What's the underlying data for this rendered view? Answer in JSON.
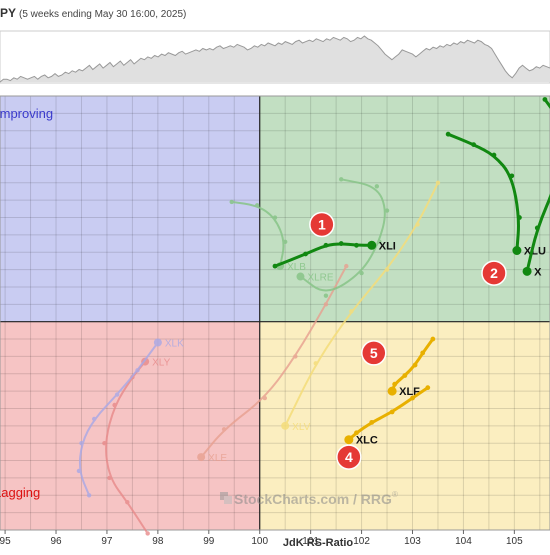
{
  "header": {
    "symbol": "PY",
    "period": "(5 weeks ending May 30 16:00, 2025)"
  },
  "quadrants": {
    "improving": "Improving",
    "lagging": "Lagging",
    "colors": {
      "improving": "#c9ccf2",
      "leading": "#c2dfc2",
      "lagging": "#f6c4c4",
      "weakening": "#fbeec0"
    }
  },
  "watermark": {
    "brand": "StockCharts.com",
    "suffix": "/ RRG",
    "reg": "®"
  },
  "badges": [
    {
      "number": "1",
      "x": 101.22,
      "y": 102.8
    },
    {
      "number": "2",
      "x": 104.6,
      "y": 101.4
    },
    {
      "number": "4",
      "x": 101.75,
      "y": 96.1
    },
    {
      "number": "5",
      "x": 102.24,
      "y": 99.1
    }
  ],
  "chart_data": {
    "type": "scatter",
    "xlabel": "JdK RS-Ratio",
    "xlim": [
      94.9,
      105.7
    ],
    "ylim": [
      94.0,
      106.5
    ],
    "center": {
      "x": 100,
      "y": 100
    },
    "x_ticks": [
      95,
      96,
      97,
      98,
      99,
      100,
      101,
      102,
      103,
      104,
      105
    ],
    "spark_values": [
      2,
      4,
      4,
      3,
      5,
      4,
      6,
      5,
      4,
      5,
      6,
      4,
      6,
      7,
      5,
      6,
      8,
      6,
      7,
      9,
      8,
      10,
      9,
      11,
      10,
      12,
      14,
      11,
      13,
      15,
      12,
      14,
      16,
      13,
      15,
      17,
      14,
      16,
      18,
      15,
      17,
      19,
      18,
      20,
      19,
      21,
      20,
      22,
      21,
      23,
      22,
      21,
      23,
      24,
      22,
      23,
      24,
      25,
      24,
      26,
      25,
      26,
      25,
      27,
      28,
      26,
      27,
      28,
      27,
      29,
      28,
      27,
      25,
      26,
      28,
      27,
      29,
      28,
      30,
      29,
      28,
      30,
      29,
      31,
      30,
      29,
      31,
      32,
      30,
      31,
      32,
      31,
      33,
      32,
      31,
      33,
      32,
      34,
      33,
      32,
      34,
      33,
      31,
      32,
      34,
      33,
      35,
      33,
      32,
      30,
      28,
      25,
      22,
      20,
      18,
      20,
      22,
      25,
      24,
      23,
      22,
      20,
      22,
      24,
      26,
      25,
      27,
      26,
      28,
      27,
      29,
      28,
      30,
      29,
      31,
      30,
      32,
      31,
      30,
      32,
      31,
      29,
      28,
      26,
      22,
      18,
      14,
      10,
      7,
      5,
      8,
      12,
      14,
      12,
      10,
      11,
      13,
      12,
      14,
      13,
      12
    ],
    "series": [
      {
        "name": "XLI",
        "label": "XLI",
        "color": "#118811",
        "opacity": 1,
        "points": [
          [
            100.3,
            101.6
          ],
          [
            100.9,
            101.95
          ],
          [
            101.3,
            102.2
          ],
          [
            101.6,
            102.25
          ],
          [
            101.9,
            102.2
          ],
          [
            102.2,
            102.2
          ]
        ]
      },
      {
        "name": "XLU",
        "label": "XLU",
        "color": "#118811",
        "opacity": 1,
        "points": [
          [
            103.7,
            105.4
          ],
          [
            104.2,
            105.1
          ],
          [
            104.6,
            104.8
          ],
          [
            104.95,
            104.2
          ],
          [
            105.1,
            103.0
          ],
          [
            105.05,
            102.05
          ]
        ]
      },
      {
        "name": "X",
        "label": "X",
        "color": "#118811",
        "opacity": 1,
        "points": [
          [
            105.6,
            106.4
          ],
          [
            105.85,
            105.9
          ],
          [
            105.95,
            105.0
          ],
          [
            105.8,
            103.9
          ],
          [
            105.45,
            102.7
          ],
          [
            105.25,
            101.45
          ]
        ]
      },
      {
        "name": "XLF",
        "label": "XLF",
        "color": "#e8b000",
        "opacity": 1,
        "points": [
          [
            103.4,
            99.5
          ],
          [
            103.2,
            99.1
          ],
          [
            103.05,
            98.75
          ],
          [
            102.85,
            98.45
          ],
          [
            102.65,
            98.2
          ],
          [
            102.6,
            98.0
          ]
        ]
      },
      {
        "name": "XLC",
        "label": "XLC",
        "color": "#e8b000",
        "opacity": 1,
        "points": [
          [
            103.3,
            98.1
          ],
          [
            103.0,
            97.8
          ],
          [
            102.6,
            97.4
          ],
          [
            102.2,
            97.1
          ],
          [
            101.9,
            96.8
          ],
          [
            101.75,
            96.6
          ]
        ]
      },
      {
        "name": "XLRE",
        "label": "XLRE",
        "color": "#88c488",
        "opacity": 0.85,
        "points": [
          [
            101.6,
            104.1
          ],
          [
            102.3,
            103.9
          ],
          [
            102.5,
            103.2
          ],
          [
            102.35,
            102.3
          ],
          [
            102.0,
            101.4
          ],
          [
            101.3,
            100.75
          ],
          [
            100.8,
            101.3
          ]
        ]
      },
      {
        "name": "XLB",
        "label": "XLB",
        "color": "#88c488",
        "opacity": 0.85,
        "points": [
          [
            99.45,
            103.45
          ],
          [
            99.95,
            103.35
          ],
          [
            100.3,
            103.0
          ],
          [
            100.5,
            102.3
          ],
          [
            100.4,
            101.6
          ]
        ]
      },
      {
        "name": "XLV",
        "label": "XLV",
        "color": "#f5dd7a",
        "opacity": 0.85,
        "points": [
          [
            103.5,
            104.0
          ],
          [
            103.1,
            102.8
          ],
          [
            102.5,
            101.5
          ],
          [
            101.8,
            100.3
          ],
          [
            101.1,
            98.8
          ],
          [
            100.5,
            97.0
          ]
        ]
      },
      {
        "name": "XLE",
        "label": "XLE",
        "color": "#e8a090",
        "opacity": 0.8,
        "points": [
          [
            101.7,
            101.6
          ],
          [
            101.3,
            100.5
          ],
          [
            100.7,
            99.0
          ],
          [
            100.1,
            97.8
          ],
          [
            99.3,
            96.9
          ],
          [
            98.85,
            96.1
          ]
        ]
      },
      {
        "name": "XLY",
        "label": "XLY",
        "color": "#e88a8a",
        "opacity": 0.8,
        "points": [
          [
            97.8,
            93.9
          ],
          [
            97.4,
            94.8
          ],
          [
            97.05,
            95.5
          ],
          [
            96.95,
            96.5
          ],
          [
            97.15,
            97.6
          ],
          [
            97.5,
            98.4
          ],
          [
            97.75,
            98.85
          ]
        ]
      },
      {
        "name": "XLK",
        "label": "XLK",
        "color": "#a8a8e6",
        "opacity": 0.8,
        "points": [
          [
            96.65,
            95.0
          ],
          [
            96.45,
            95.7
          ],
          [
            96.5,
            96.5
          ],
          [
            96.75,
            97.2
          ],
          [
            97.2,
            97.9
          ],
          [
            97.6,
            98.6
          ],
          [
            98.0,
            99.4
          ]
        ]
      }
    ]
  }
}
